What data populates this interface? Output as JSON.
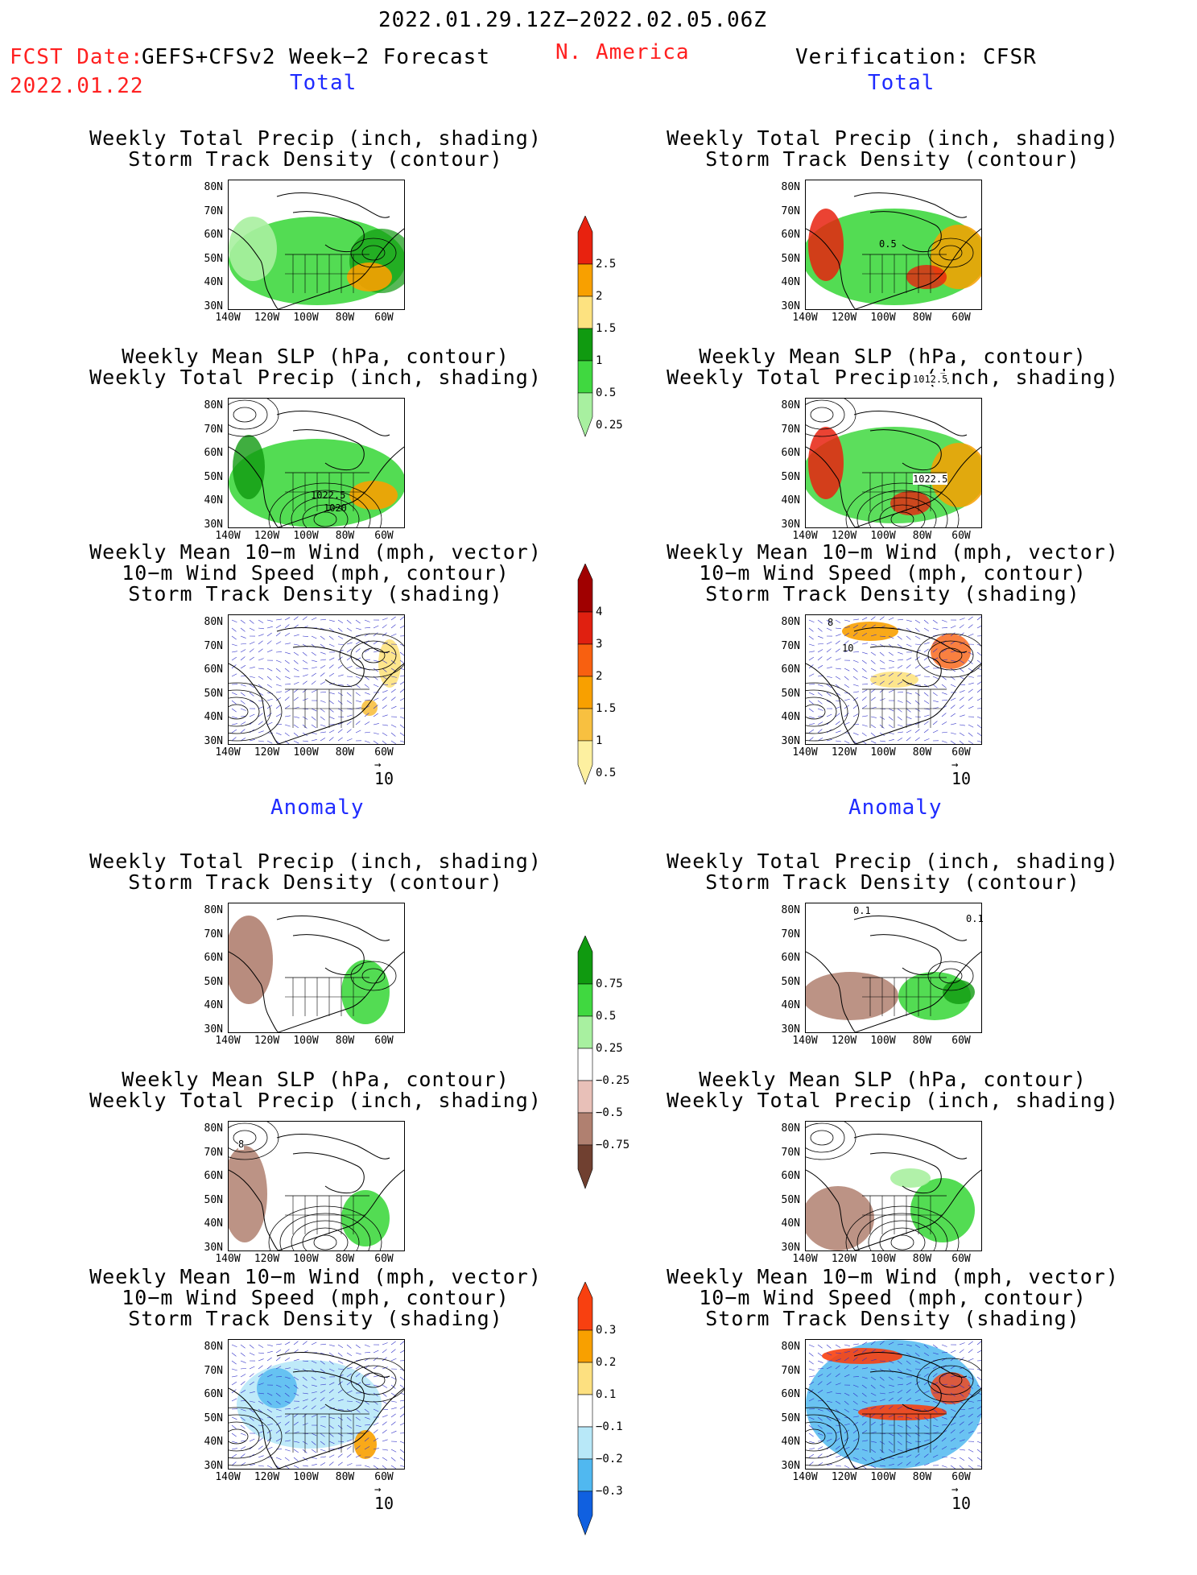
{
  "header": {
    "period": "2022.01.29.12Z−2022.02.05.06Z",
    "fcst_label": "FCST Date:",
    "fcst_date": "2022.01.22",
    "forecast_name": "GEFS+CFSv2 Week−2 Forecast",
    "region": "N. America",
    "verification": "Verification: CFSR"
  },
  "sections": {
    "total": "Total",
    "anomaly": "Anomaly"
  },
  "titles": {
    "precip_track": [
      "Weekly Total Precip (inch, shading)",
      "Storm Track Density (contour)"
    ],
    "slp_precip": [
      "Weekly Mean SLP (hPa, contour)",
      "Weekly Total Precip (inch, shading)"
    ],
    "wind_track": [
      "Weekly Mean 10−m Wind (mph, vector)",
      "10−m Wind Speed (mph, contour)",
      "Storm Track Density (shading)"
    ]
  },
  "axes": {
    "lat_ticks": [
      "80N",
      "70N",
      "60N",
      "50N",
      "40N",
      "30N"
    ],
    "lon_ticks": [
      "140W",
      "120W",
      "100W",
      "80W",
      "60W"
    ]
  },
  "vector_ref": "10",
  "contour_labels": {
    "total_obs_precip": "0.5",
    "total_fcst_slp_a": "1022.5",
    "total_fcst_slp_b": "1020",
    "total_obs_slp_a": "1012.5",
    "total_obs_slp_b": "1022.5",
    "total_obs_wind_a": "8",
    "total_obs_wind_b": "10",
    "anom_obs_precip_a": "0.1",
    "anom_obs_precip_b": "0.1",
    "anom_fcst_slp": "8"
  },
  "colorbars": {
    "precip_total": {
      "labels": [
        "2.5",
        "2",
        "1.5",
        "1",
        "0.5",
        "0.25"
      ],
      "colors": [
        "#e8220f",
        "#f8a000",
        "#fde280",
        "#109a10",
        "#40d840",
        "#a8f0a0"
      ]
    },
    "track_total": {
      "labels": [
        "4",
        "3",
        "2",
        "1.5",
        "1",
        "0.5"
      ],
      "colors": [
        "#a00000",
        "#e02010",
        "#f86010",
        "#f8a000",
        "#f8c040",
        "#fdf0a0"
      ]
    },
    "precip_anom": {
      "labels": [
        "0.75",
        "0.5",
        "0.25",
        "−0.25",
        "−0.5",
        "−0.75"
      ],
      "colors": [
        "#109a10",
        "#40d840",
        "#a8f0a0",
        "#ffffff",
        "#e8c0b8",
        "#b08070",
        "#704030"
      ]
    },
    "track_anom": {
      "labels": [
        "0.3",
        "0.2",
        "0.1",
        "−0.1",
        "−0.2",
        "−0.3"
      ],
      "colors": [
        "#f84010",
        "#f8a000",
        "#fde080",
        "#ffffff",
        "#b8e8f8",
        "#50b8f0",
        "#1060e0"
      ]
    }
  }
}
